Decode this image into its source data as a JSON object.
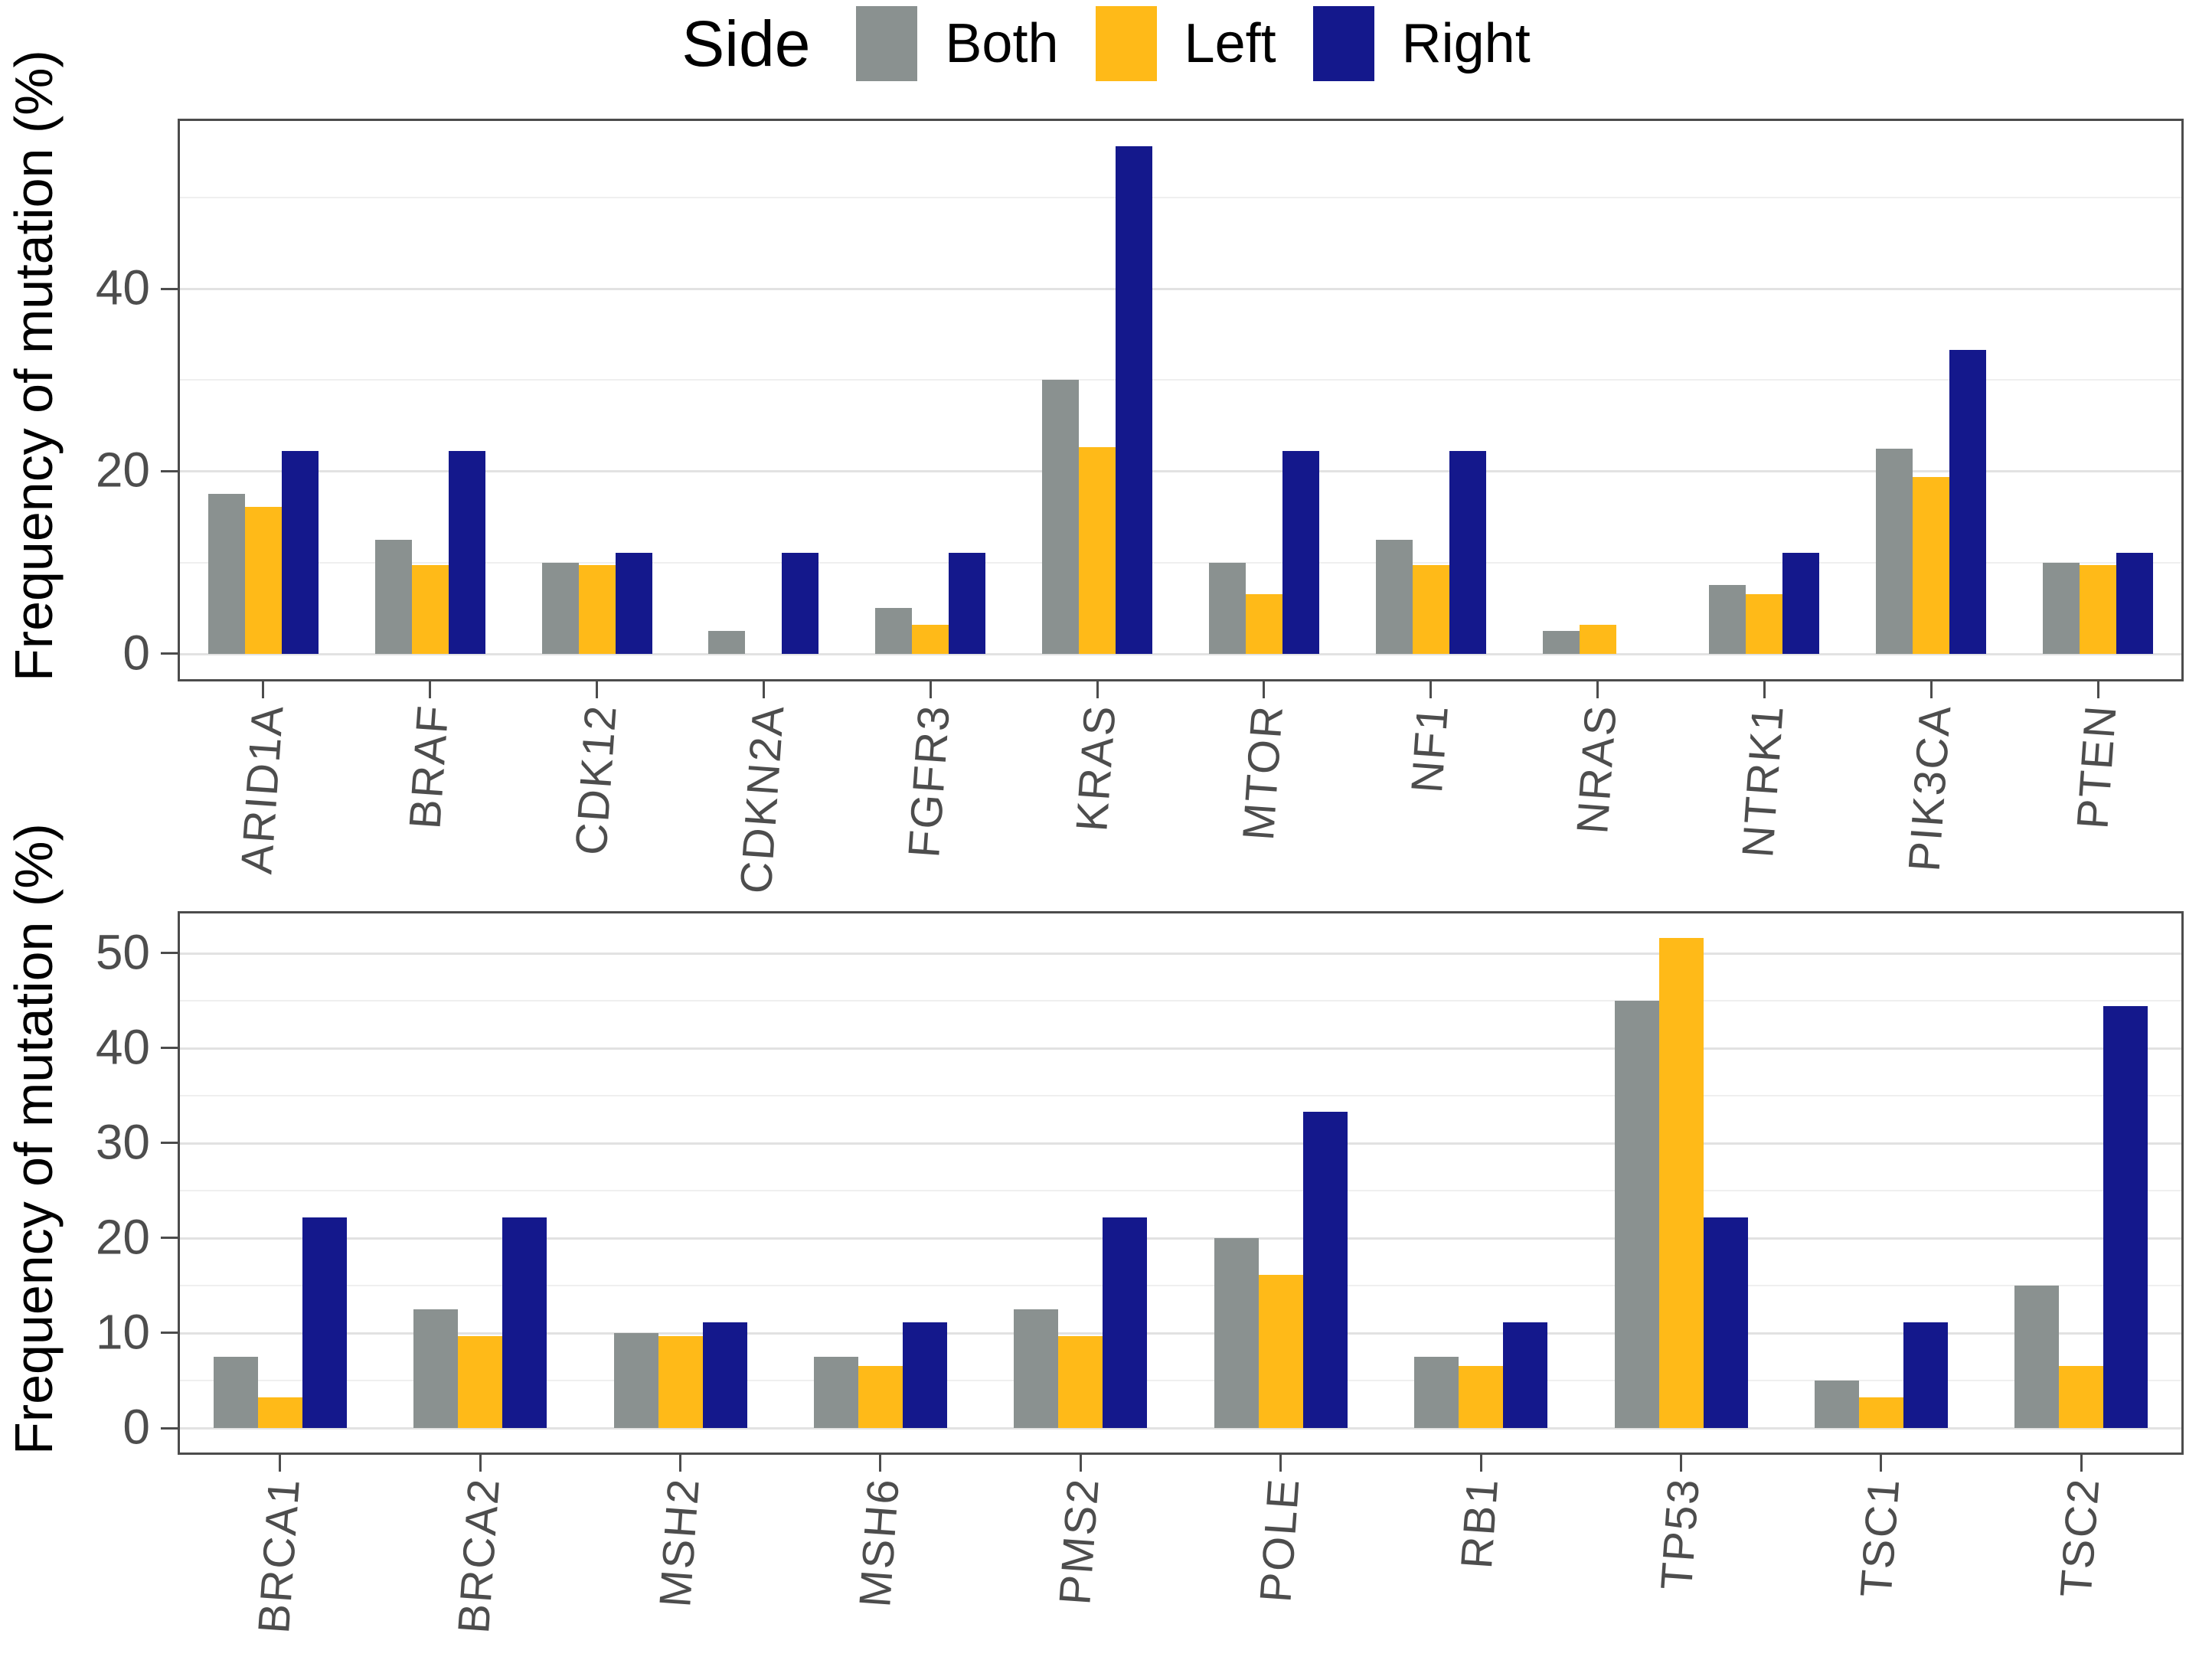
{
  "legend": {
    "title": "Side",
    "items": [
      {
        "label": "Both",
        "color": "#8a9190"
      },
      {
        "label": "Left",
        "color": "#ffba18"
      },
      {
        "label": "Right",
        "color": "#14188c"
      }
    ]
  },
  "chart_data": [
    {
      "type": "bar",
      "title": "",
      "ylabel": "Frequency of mutation (%)",
      "xlabel": "",
      "categories": [
        "ARID1A",
        "BRAF",
        "CDK12",
        "CDKN2A",
        "FGFR3",
        "KRAS",
        "MTOR",
        "NF1",
        "NRAS",
        "NTRK1",
        "PIK3CA",
        "PTEN"
      ],
      "series": [
        {
          "name": "Both",
          "color": "#8a9190",
          "values": [
            17.5,
            12.5,
            10,
            2.5,
            5,
            30,
            10,
            12.5,
            2.5,
            7.5,
            22.5,
            10
          ]
        },
        {
          "name": "Left",
          "color": "#ffba18",
          "values": [
            16.1,
            9.7,
            9.7,
            0,
            3.2,
            22.6,
            6.5,
            9.7,
            3.2,
            6.5,
            19.4,
            9.7
          ]
        },
        {
          "name": "Right",
          "color": "#14188c",
          "values": [
            22.2,
            22.2,
            11.1,
            11.1,
            11.1,
            55.6,
            22.2,
            22.2,
            0,
            11.1,
            33.3,
            11.1
          ]
        }
      ],
      "ylim": [
        0,
        55.6
      ],
      "yticks_major": [
        0,
        20,
        40
      ],
      "yticks_minor": [
        10,
        30,
        50
      ],
      "grid": true,
      "legend_position": "top"
    },
    {
      "type": "bar",
      "title": "",
      "ylabel": "Frequency of mutation (%)",
      "xlabel": "",
      "categories": [
        "BRCA1",
        "BRCA2",
        "MSH2",
        "MSH6",
        "PMS2",
        "POLE",
        "RB1",
        "TP53",
        "TSC1",
        "TSC2"
      ],
      "series": [
        {
          "name": "Both",
          "color": "#8a9190",
          "values": [
            7.5,
            12.5,
            10,
            7.5,
            12.5,
            20,
            7.5,
            45,
            5,
            15
          ]
        },
        {
          "name": "Left",
          "color": "#ffba18",
          "values": [
            3.2,
            9.7,
            9.7,
            6.5,
            9.7,
            16.1,
            6.5,
            51.6,
            3.2,
            6.5
          ]
        },
        {
          "name": "Right",
          "color": "#14188c",
          "values": [
            22.2,
            22.2,
            11.1,
            11.1,
            22.2,
            33.3,
            11.1,
            22.2,
            11.1,
            44.4
          ]
        }
      ],
      "ylim": [
        0,
        51.6
      ],
      "yticks_major": [
        0,
        10,
        20,
        30,
        40,
        50
      ],
      "yticks_minor": [
        5,
        15,
        25,
        35,
        45
      ],
      "grid": true,
      "legend_position": "top"
    }
  ]
}
